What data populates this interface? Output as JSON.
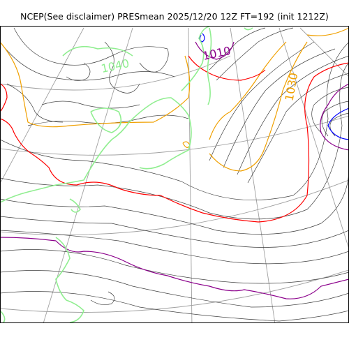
{
  "figure": {
    "title": "NCEP(See disclaimer) PRESmean 2025/12/20 12Z FT=192 (init 1212Z)"
  },
  "contour_labels": [
    {
      "text": "1040",
      "color": "#90ee90"
    },
    {
      "text": "1010",
      "color": "#8b008b"
    },
    {
      "text": "1030",
      "color": "#f0a000"
    }
  ],
  "colors": {
    "coastline": "#90ee90",
    "graticule": "#a0a0a0",
    "isobar_thin": "#404040",
    "isobar_1020": "#ff0000",
    "isobar_1030": "#f0a000",
    "isobar_1010": "#8b008b",
    "isobar_1000": "#0000ff"
  }
}
